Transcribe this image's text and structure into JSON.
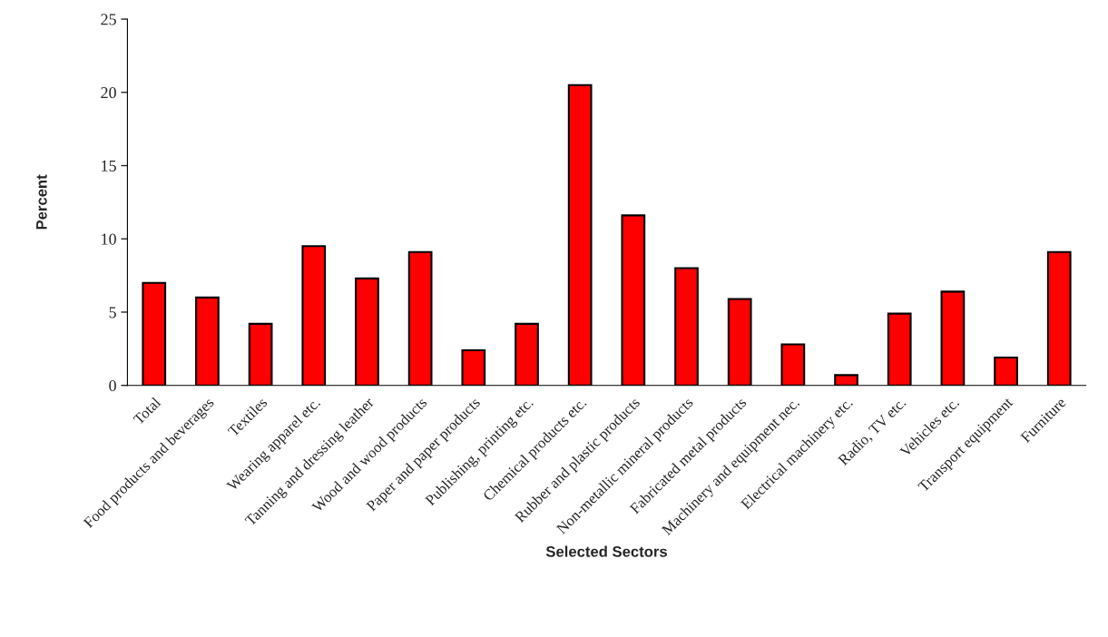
{
  "chart_data": {
    "type": "bar",
    "categories": [
      "Total",
      "Food products and beverages",
      "Textiles",
      "Wearing apparel etc.",
      "Tanning and dressing leather",
      "Wood and wood products",
      "Paper and paper products",
      "Publishing, printing etc.",
      "Chemical products etc.",
      "Rubber and plastic products",
      "Non-metallic mineral products",
      "Fabricated metal products",
      "Machinery and equipment nec.",
      "Electrical machinery etc.",
      "Radio, TV etc.",
      "Vehicles etc.",
      "Transport equipment",
      "Furniture"
    ],
    "values": [
      7.0,
      6.0,
      4.2,
      9.5,
      7.3,
      9.1,
      2.4,
      4.2,
      20.5,
      11.6,
      8.0,
      5.9,
      2.8,
      0.7,
      4.9,
      6.4,
      1.9,
      9.1
    ],
    "color": "#ff0000",
    "xlabel": "Selected Sectors",
    "ylabel": "Percent",
    "ylim": [
      0,
      25
    ],
    "yticks": [
      0,
      5,
      10,
      15,
      20,
      25
    ],
    "grid": false,
    "legend": false
  }
}
